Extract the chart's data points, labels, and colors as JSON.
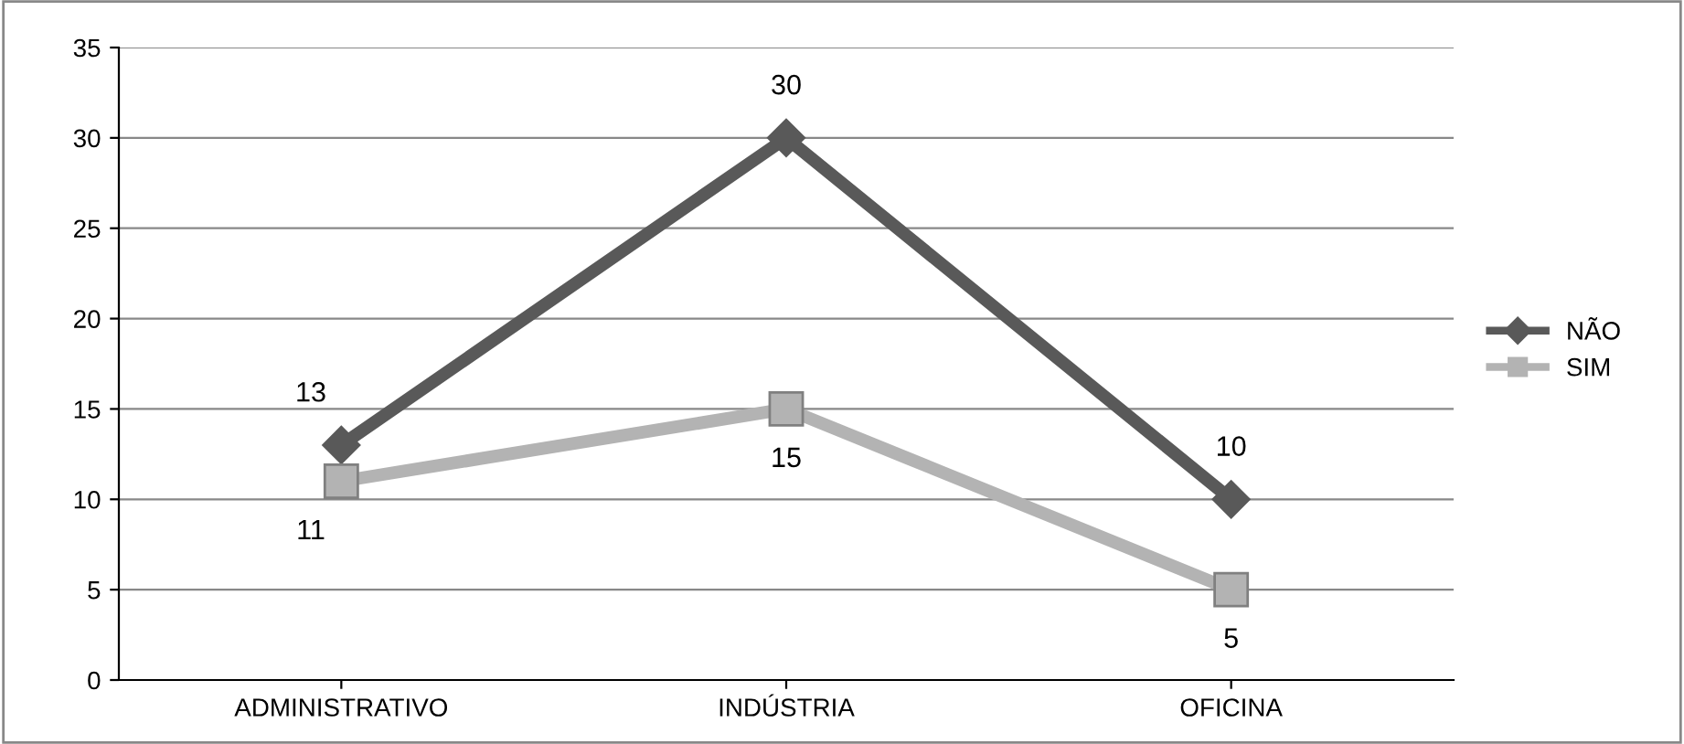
{
  "chart_data": {
    "type": "line",
    "categories": [
      "ADMINISTRATIVO",
      "INDÚSTRIA",
      "OFICINA"
    ],
    "series": [
      {
        "name": "NÃO",
        "color": "#595959",
        "values": [
          13,
          30,
          10
        ],
        "marker": "diamond"
      },
      {
        "name": "SIM",
        "color": "#b3b3b3",
        "values": [
          11,
          15,
          5
        ],
        "marker": "square"
      }
    ],
    "ylim": [
      0,
      35
    ],
    "yticks": [
      0,
      5,
      10,
      15,
      20,
      25,
      30,
      35
    ],
    "grid": "y",
    "legend": "right",
    "data_labels": true,
    "line_style": "solid"
  }
}
